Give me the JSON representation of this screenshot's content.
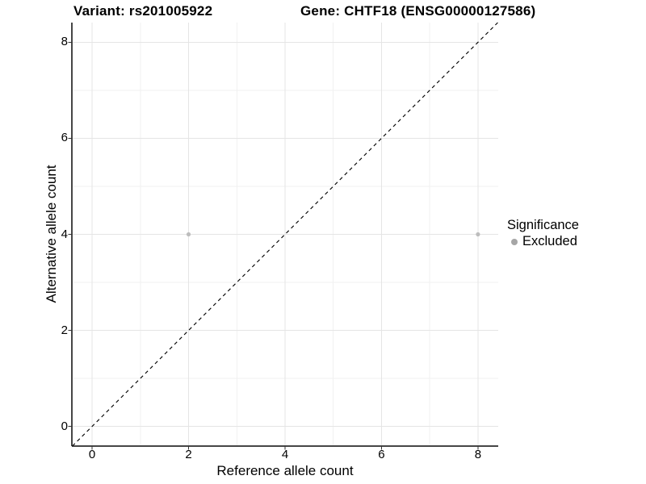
{
  "chart_data": {
    "type": "scatter",
    "title_left": "Variant: rs201005922",
    "title_right": "Gene: CHTF18 (ENSG00000127586)",
    "xlabel": "Reference allele count",
    "ylabel": "Alternative allele count",
    "x_ticks": [
      0,
      2,
      4,
      6,
      8
    ],
    "y_ticks": [
      0,
      2,
      4,
      6,
      8
    ],
    "x_minor_gridlines": [
      1,
      3,
      5,
      7
    ],
    "y_minor_gridlines": [
      1,
      3,
      5,
      7
    ],
    "xlim": [
      -0.42,
      8.42
    ],
    "ylim": [
      -0.41,
      8.41
    ],
    "grid": true,
    "legend_position": "right",
    "series": [
      {
        "name": "Excluded",
        "color": "#bdbdbd",
        "marker": "circle",
        "points": [
          {
            "x": 2,
            "y": 4
          },
          {
            "x": 8,
            "y": 4
          }
        ]
      }
    ],
    "reference_line": {
      "slope": 1,
      "intercept": 0,
      "style": "dashed",
      "color": "#000000"
    },
    "legend": {
      "title": "Significance",
      "items": [
        {
          "label": "Excluded",
          "color": "#a6a6a6",
          "marker": "circle"
        }
      ]
    },
    "style_colors": {
      "background": "#ffffff",
      "major_grid": "#e5e5e5",
      "minor_grid": "#f1f1f1",
      "axis_line": "#464646",
      "tick_mark": "#333333"
    }
  }
}
